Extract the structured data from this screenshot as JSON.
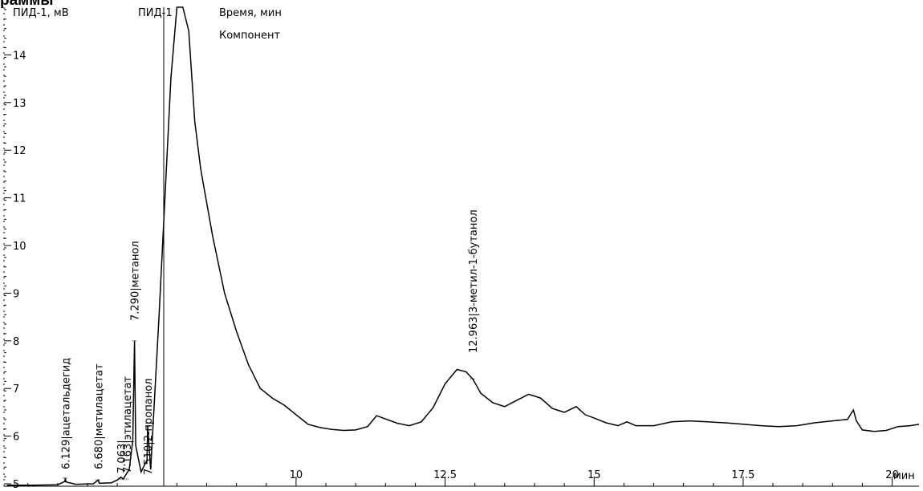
{
  "page": {
    "title_fragment": "раммы"
  },
  "chart_data": {
    "type": "line",
    "title": "",
    "xlabel": "мин",
    "ylabel": "ПИД-1, мВ",
    "series_label": "ПИД-1",
    "legend_lines": [
      "Время, мин",
      "Компонент"
    ],
    "xlim": [
      5.1,
      20.45
    ],
    "ylim": [
      4.95,
      15.0
    ],
    "x_ticks": [
      10,
      12.5,
      15,
      17.5,
      20
    ],
    "x_tick_labels": [
      "10",
      "12.5",
      "15",
      "17.5",
      "20"
    ],
    "y_ticks": [
      5,
      6,
      7,
      8,
      9,
      10,
      11,
      12,
      13,
      14
    ],
    "y_tick_labels": [
      "5",
      "6",
      "7",
      "8",
      "9",
      "10",
      "11",
      "12",
      "13",
      "14"
    ],
    "grid": false,
    "series": [
      {
        "values_desc": "chromatogram signal (mV) vs retention time (min)",
        "x": [
          5.15,
          5.6,
          6.0,
          6.12,
          6.129,
          6.14,
          6.3,
          6.6,
          6.68,
          6.7,
          6.9,
          7.0,
          7.06,
          7.1,
          7.15,
          7.2,
          7.26,
          7.29,
          7.31,
          7.4,
          7.5,
          7.51,
          7.56,
          7.7,
          7.8,
          7.9,
          8.0,
          8.1,
          8.2,
          8.3,
          8.4,
          8.6,
          8.8,
          9.0,
          9.2,
          9.4,
          9.6,
          9.8,
          10.0,
          10.2,
          10.4,
          10.6,
          10.8,
          11.0,
          11.2,
          11.35,
          11.5,
          11.7,
          11.9,
          12.1,
          12.3,
          12.5,
          12.7,
          12.85,
          12.963,
          13.1,
          13.3,
          13.5,
          13.7,
          13.9,
          14.1,
          14.3,
          14.5,
          14.7,
          14.85,
          15.0,
          15.2,
          15.4,
          15.55,
          15.7,
          16.0,
          16.3,
          16.6,
          16.9,
          17.2,
          17.5,
          17.8,
          18.1,
          18.4,
          18.7,
          19.0,
          19.25,
          19.35,
          19.4,
          19.5,
          19.7,
          19.9,
          20.1,
          20.3,
          20.45
        ],
        "y": [
          4.97,
          4.97,
          4.98,
          5.05,
          5.12,
          5.04,
          4.99,
          5.0,
          5.08,
          5.01,
          5.02,
          5.08,
          5.14,
          5.1,
          5.2,
          5.3,
          5.9,
          8.0,
          5.8,
          5.25,
          5.5,
          6.2,
          5.3,
          8.5,
          11.0,
          13.5,
          15.5,
          16.5,
          14.5,
          12.6,
          11.6,
          10.2,
          9.0,
          8.2,
          7.5,
          7.0,
          6.8,
          6.65,
          6.45,
          6.25,
          6.18,
          6.14,
          6.12,
          6.13,
          6.2,
          6.43,
          6.36,
          6.27,
          6.22,
          6.3,
          6.6,
          7.1,
          7.4,
          7.35,
          7.2,
          6.9,
          6.7,
          6.62,
          6.75,
          6.88,
          6.8,
          6.58,
          6.5,
          6.62,
          6.45,
          6.38,
          6.28,
          6.22,
          6.3,
          6.22,
          6.22,
          6.3,
          6.32,
          6.3,
          6.28,
          6.25,
          6.22,
          6.2,
          6.22,
          6.28,
          6.32,
          6.35,
          6.55,
          6.32,
          6.13,
          6.1,
          6.12,
          6.2,
          6.22,
          6.25
        ]
      }
    ],
    "annotations": [
      {
        "x": 6.129,
        "label": "6.129|ацетальдегид"
      },
      {
        "x": 6.68,
        "label": "6.680|метилацетат"
      },
      {
        "x": 7.063,
        "label": "7.063|"
      },
      {
        "x": 7.163,
        "label": "7.163|этилацетат"
      },
      {
        "x": 7.29,
        "label": "7.290|метанол"
      },
      {
        "x": 7.51,
        "label": "7.510|2-пропанол"
      },
      {
        "x": 12.963,
        "label": "12.963|3-метил-1-бутанол"
      }
    ]
  }
}
